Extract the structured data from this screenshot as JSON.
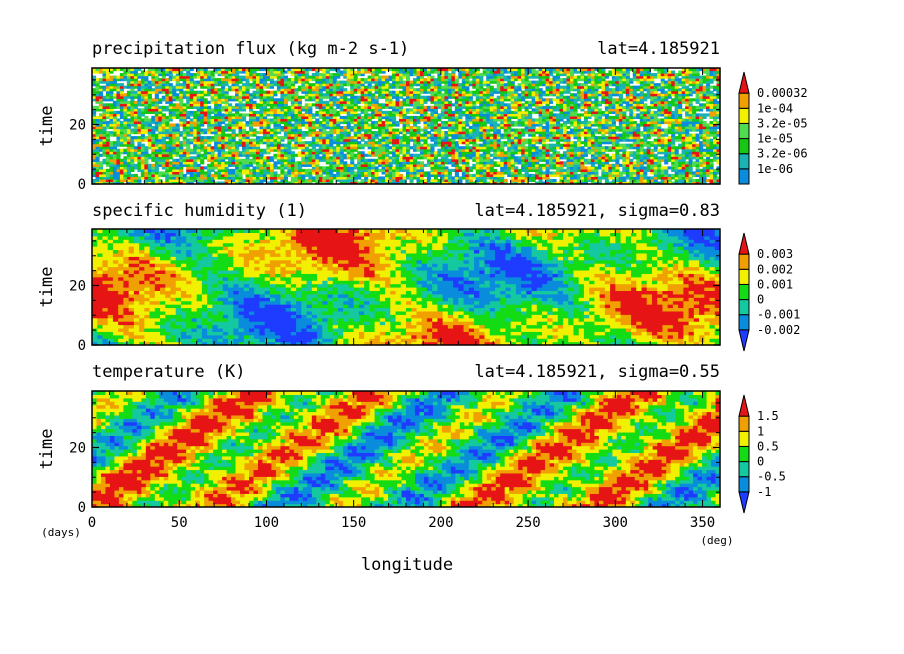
{
  "chart_data": [
    {
      "type": "heatmap",
      "title": "precipitation flux (kg m-2 s-1)",
      "subtitle": "lat=4.185921",
      "ylabel": "time",
      "ylim": [
        0,
        39
      ],
      "xlim": [
        0,
        360
      ],
      "yticks": [
        "0",
        "20"
      ],
      "pattern": "noise",
      "colorbar": {
        "labels": [
          "0.00032",
          "1e-04",
          "3.2e-05",
          "1e-05",
          "3.2e-06",
          "1e-06"
        ],
        "colors": [
          "#0a8cdc",
          "#19b3b3",
          "#14c814",
          "#50dc50",
          "#f0f000",
          "#f0a000",
          "#e61414"
        ]
      }
    },
    {
      "type": "heatmap",
      "title": "specific humidity (1)",
      "subtitle": "lat=4.185921, sigma=0.83",
      "ylabel": "time",
      "ylim": [
        0,
        39
      ],
      "xlim": [
        0,
        360
      ],
      "yticks": [
        "0",
        "20"
      ],
      "pattern": "blobs",
      "colorbar": {
        "labels": [
          "0.003",
          "0.002",
          "0.001",
          "0",
          "-0.001",
          "-0.002"
        ],
        "colors": [
          "#1e3cff",
          "#0a8cdc",
          "#14c8a0",
          "#14dc14",
          "#f0f000",
          "#f0a000",
          "#e61414"
        ]
      }
    },
    {
      "type": "heatmap",
      "title": "temperature (K)",
      "subtitle": "lat=4.185921, sigma=0.55",
      "ylabel": "time",
      "ylim": [
        0,
        39
      ],
      "xlim": [
        0,
        360
      ],
      "yticks": [
        "0",
        "20"
      ],
      "pattern": "waves",
      "colorbar": {
        "labels": [
          "1.5",
          "1",
          "0.5",
          "0",
          "-0.5",
          "-1"
        ],
        "colors": [
          "#1e3cff",
          "#0a8cdc",
          "#14c8a0",
          "#14dc14",
          "#f0f000",
          "#f0a000",
          "#e61414"
        ]
      }
    }
  ],
  "xaxis": {
    "label": "longitude",
    "ticks": [
      "0",
      "50",
      "100",
      "150",
      "200",
      "250",
      "300",
      "350"
    ],
    "unit": "(deg)"
  },
  "time_unit": "(days)"
}
